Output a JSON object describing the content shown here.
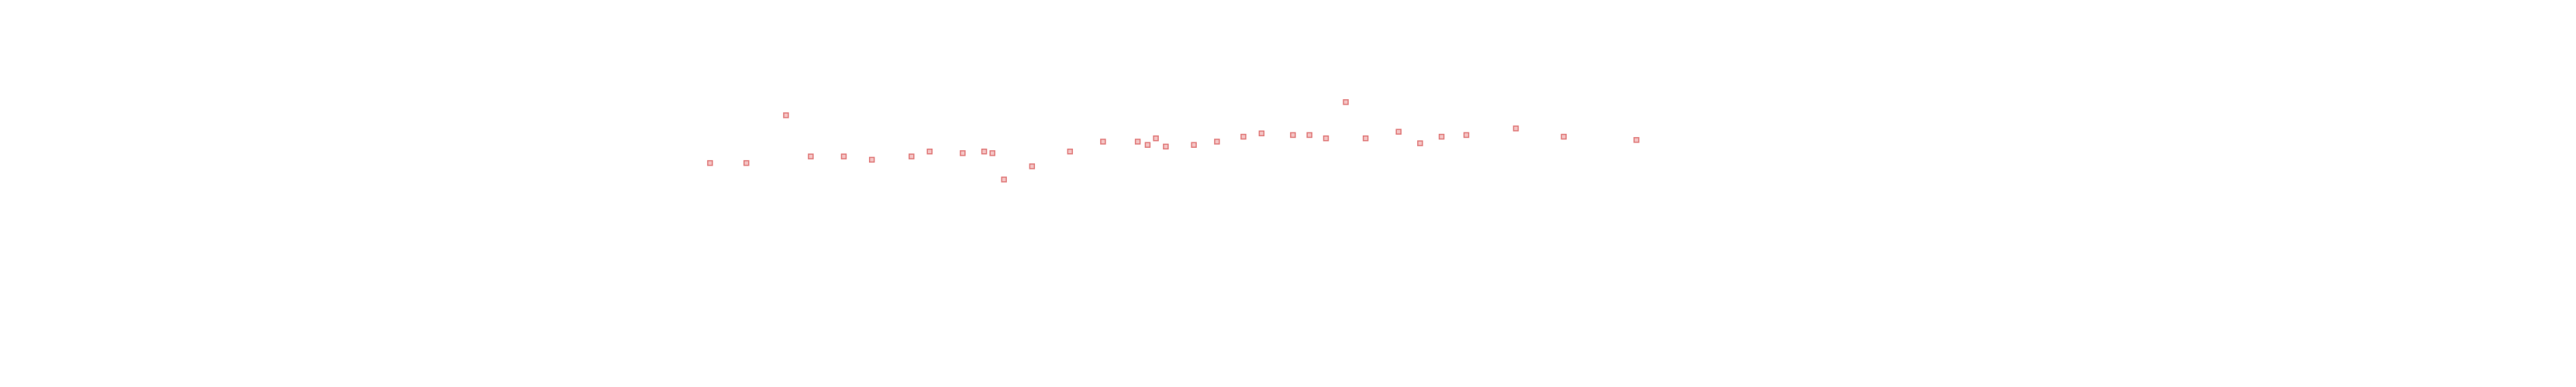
{
  "chart_data": {
    "type": "scatter",
    "color": "#e07a7a",
    "x": [
      430,
      452,
      476,
      491,
      511,
      528,
      552,
      563,
      583,
      596,
      601,
      608,
      625,
      648,
      668,
      689,
      695,
      700,
      706,
      723,
      737,
      753,
      764,
      783,
      793,
      803,
      815,
      827,
      847,
      860,
      873,
      888,
      918,
      947,
      991
    ],
    "values": [
      136,
      136,
      165,
      140,
      140,
      138,
      140,
      143,
      142,
      143,
      142,
      126,
      134,
      143,
      149,
      149,
      147,
      151,
      146,
      147,
      149,
      152,
      154,
      153,
      153,
      151,
      173,
      151,
      155,
      148,
      152,
      153,
      157,
      152,
      150
    ],
    "xlim": [
      0,
      1560
    ],
    "ylim": [
      0,
      235
    ]
  }
}
